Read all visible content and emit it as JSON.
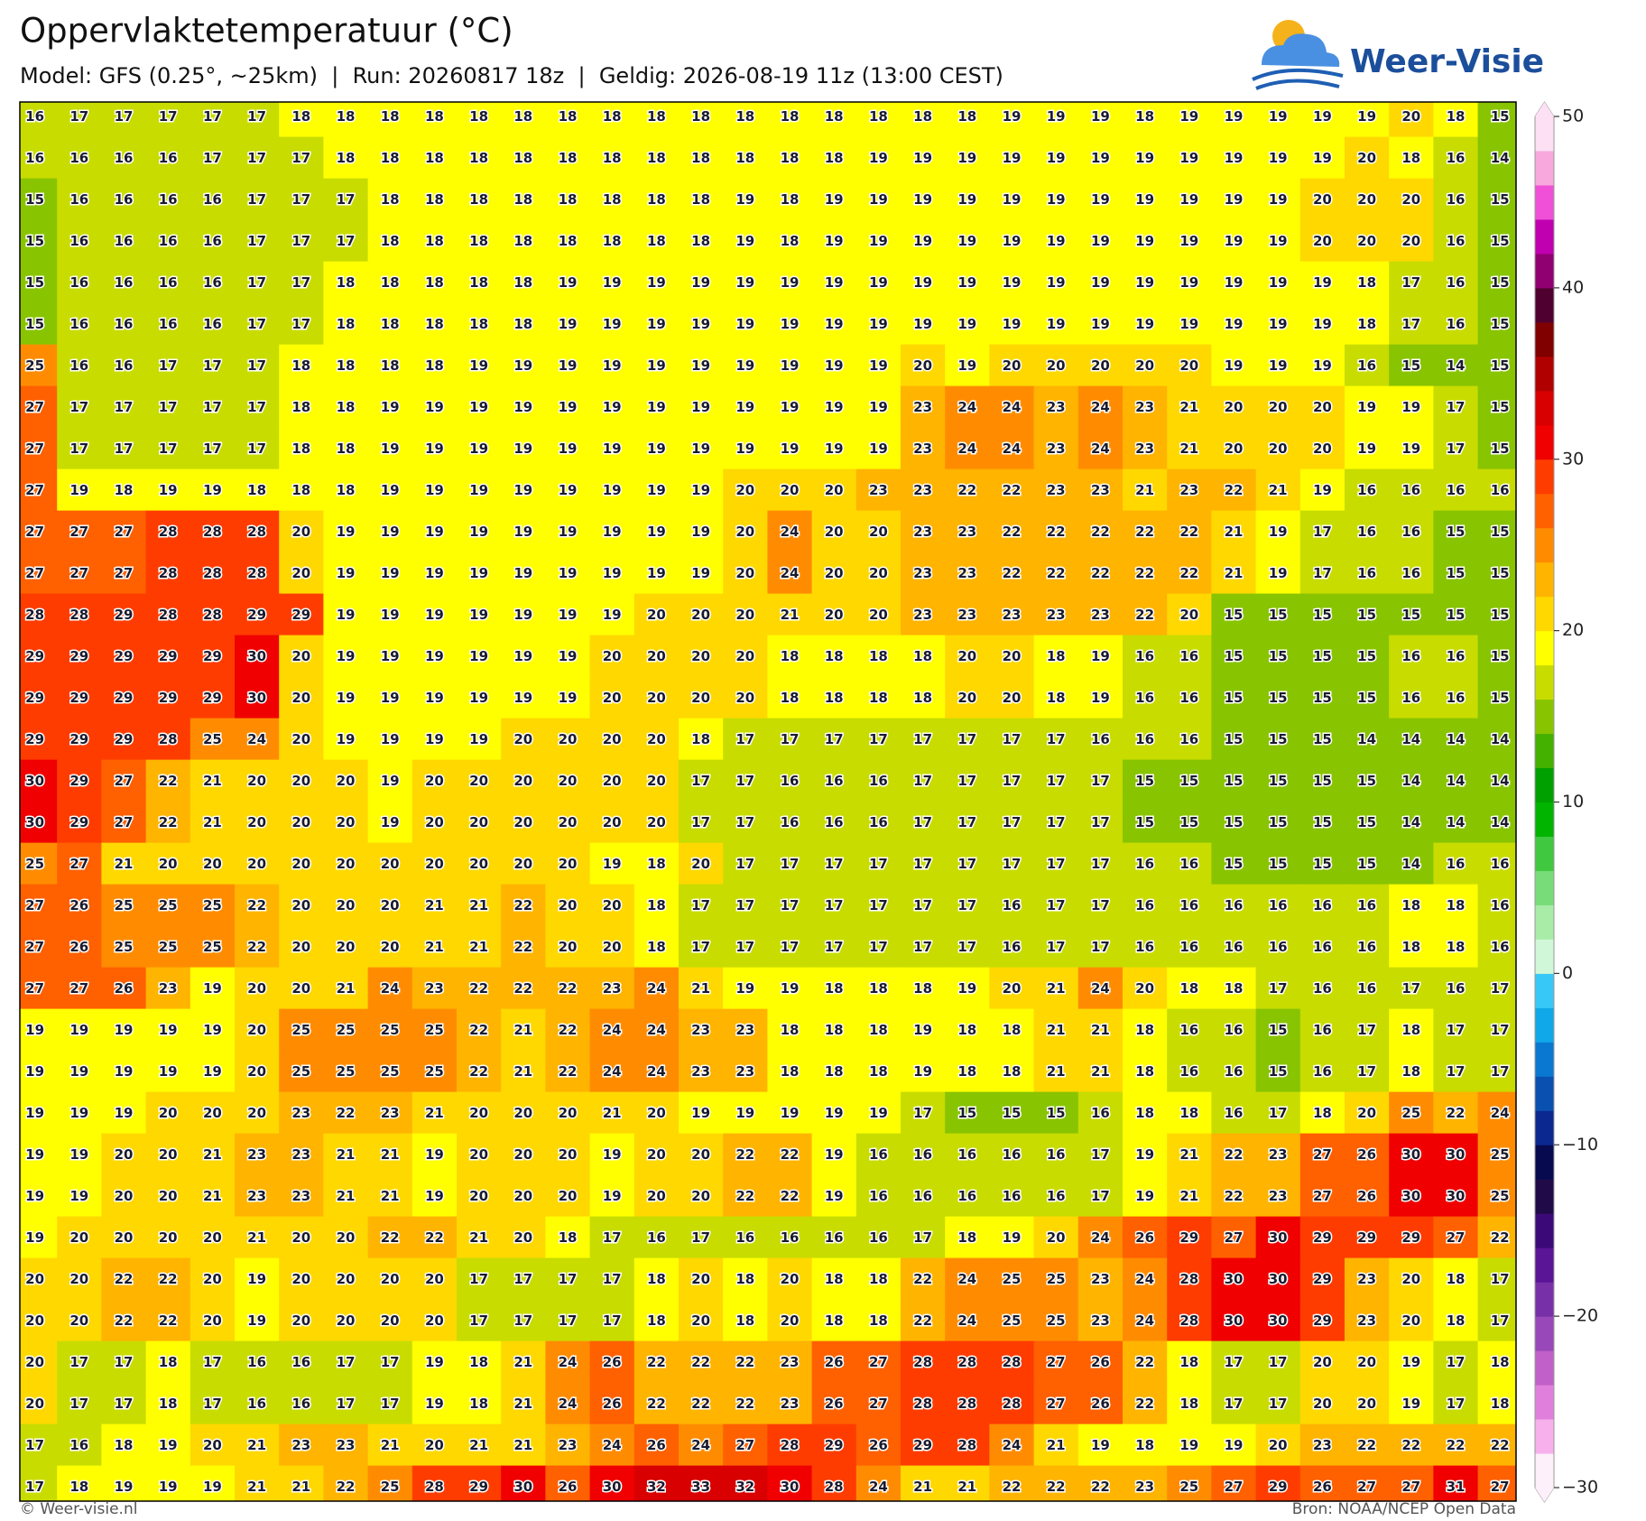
{
  "header": {
    "title": "Oppervlaktetemperatuur (°C)",
    "subtitle": "Model: GFS (0.25°, ~25km)  |  Run: 20260817 18z  |  Geldig: 2026-08-19 11z (13:00 CEST)",
    "logo": "Weer-Visie"
  },
  "map": {
    "unit": "°C",
    "values": [
      [
        16,
        17,
        17,
        17,
        17,
        17,
        18,
        18,
        18,
        18,
        18,
        18,
        18,
        18,
        18,
        18,
        18,
        18,
        18,
        18,
        18,
        18,
        19,
        19,
        19,
        18,
        19,
        19,
        19,
        19,
        19,
        20,
        18,
        15
      ],
      [
        16,
        16,
        16,
        16,
        17,
        17,
        17,
        18,
        18,
        18,
        18,
        18,
        18,
        18,
        18,
        18,
        18,
        18,
        18,
        19,
        19,
        19,
        19,
        19,
        19,
        19,
        19,
        19,
        19,
        19,
        20,
        18,
        16,
        14
      ],
      [
        15,
        16,
        16,
        16,
        16,
        17,
        17,
        17,
        18,
        18,
        18,
        18,
        18,
        18,
        18,
        18,
        19,
        18,
        19,
        19,
        19,
        19,
        19,
        19,
        19,
        19,
        19,
        19,
        19,
        20,
        20,
        20,
        16,
        15
      ],
      [
        15,
        16,
        16,
        16,
        16,
        17,
        17,
        17,
        18,
        18,
        18,
        18,
        18,
        18,
        18,
        18,
        19,
        18,
        19,
        19,
        19,
        19,
        19,
        19,
        19,
        19,
        19,
        19,
        19,
        20,
        20,
        20,
        16,
        15
      ],
      [
        15,
        16,
        16,
        16,
        16,
        17,
        17,
        18,
        18,
        18,
        18,
        18,
        19,
        19,
        19,
        19,
        19,
        19,
        19,
        19,
        19,
        19,
        19,
        19,
        19,
        19,
        19,
        19,
        19,
        19,
        18,
        17,
        16,
        15
      ],
      [
        15,
        16,
        16,
        16,
        16,
        17,
        17,
        18,
        18,
        18,
        18,
        18,
        19,
        19,
        19,
        19,
        19,
        19,
        19,
        19,
        19,
        19,
        19,
        19,
        19,
        19,
        19,
        19,
        19,
        19,
        18,
        17,
        16,
        15
      ],
      [
        25,
        16,
        16,
        17,
        17,
        17,
        18,
        18,
        18,
        18,
        19,
        19,
        19,
        19,
        19,
        19,
        19,
        19,
        19,
        19,
        20,
        19,
        20,
        20,
        20,
        20,
        20,
        19,
        19,
        19,
        16,
        15,
        14,
        15
      ],
      [
        27,
        17,
        17,
        17,
        17,
        17,
        18,
        18,
        19,
        19,
        19,
        19,
        19,
        19,
        19,
        19,
        19,
        19,
        19,
        19,
        23,
        24,
        24,
        23,
        24,
        23,
        21,
        20,
        20,
        20,
        19,
        19,
        17,
        15
      ],
      [
        27,
        17,
        17,
        17,
        17,
        17,
        18,
        18,
        19,
        19,
        19,
        19,
        19,
        19,
        19,
        19,
        19,
        19,
        19,
        19,
        23,
        24,
        24,
        23,
        24,
        23,
        21,
        20,
        20,
        20,
        19,
        19,
        17,
        15
      ],
      [
        27,
        19,
        18,
        19,
        19,
        18,
        18,
        18,
        19,
        19,
        19,
        19,
        19,
        19,
        19,
        19,
        20,
        20,
        20,
        23,
        23,
        22,
        22,
        23,
        23,
        21,
        23,
        22,
        21,
        19,
        16,
        16,
        16,
        16
      ],
      [
        27,
        27,
        27,
        28,
        28,
        28,
        20,
        19,
        19,
        19,
        19,
        19,
        19,
        19,
        19,
        19,
        20,
        24,
        20,
        20,
        23,
        23,
        22,
        22,
        22,
        22,
        22,
        21,
        19,
        17,
        16,
        16,
        15,
        15
      ],
      [
        27,
        27,
        27,
        28,
        28,
        28,
        20,
        19,
        19,
        19,
        19,
        19,
        19,
        19,
        19,
        19,
        20,
        24,
        20,
        20,
        23,
        23,
        22,
        22,
        22,
        22,
        22,
        21,
        19,
        17,
        16,
        16,
        15,
        15
      ],
      [
        28,
        28,
        29,
        28,
        28,
        29,
        29,
        19,
        19,
        19,
        19,
        19,
        19,
        19,
        20,
        20,
        20,
        21,
        20,
        20,
        23,
        23,
        23,
        23,
        23,
        22,
        20,
        15,
        15,
        15,
        15,
        15,
        15,
        15
      ],
      [
        29,
        29,
        29,
        29,
        29,
        30,
        20,
        19,
        19,
        19,
        19,
        19,
        19,
        20,
        20,
        20,
        20,
        18,
        18,
        18,
        18,
        20,
        20,
        18,
        19,
        16,
        16,
        15,
        15,
        15,
        15,
        16,
        16,
        15
      ],
      [
        29,
        29,
        29,
        29,
        29,
        30,
        20,
        19,
        19,
        19,
        19,
        19,
        19,
        20,
        20,
        20,
        20,
        18,
        18,
        18,
        18,
        20,
        20,
        18,
        19,
        16,
        16,
        15,
        15,
        15,
        15,
        16,
        16,
        15
      ],
      [
        29,
        29,
        29,
        28,
        25,
        24,
        20,
        19,
        19,
        19,
        19,
        20,
        20,
        20,
        20,
        18,
        17,
        17,
        17,
        17,
        17,
        17,
        17,
        17,
        16,
        16,
        16,
        15,
        15,
        15,
        14,
        14,
        14,
        14
      ],
      [
        30,
        29,
        27,
        22,
        21,
        20,
        20,
        20,
        19,
        20,
        20,
        20,
        20,
        20,
        20,
        17,
        17,
        16,
        16,
        16,
        17,
        17,
        17,
        17,
        17,
        15,
        15,
        15,
        15,
        15,
        15,
        14,
        14,
        14
      ],
      [
        30,
        29,
        27,
        22,
        21,
        20,
        20,
        20,
        19,
        20,
        20,
        20,
        20,
        20,
        20,
        17,
        17,
        16,
        16,
        16,
        17,
        17,
        17,
        17,
        17,
        15,
        15,
        15,
        15,
        15,
        15,
        14,
        14,
        14
      ],
      [
        25,
        27,
        21,
        20,
        20,
        20,
        20,
        20,
        20,
        20,
        20,
        20,
        20,
        19,
        18,
        20,
        17,
        17,
        17,
        17,
        17,
        17,
        17,
        17,
        17,
        16,
        16,
        15,
        15,
        15,
        15,
        14,
        16,
        16
      ],
      [
        27,
        26,
        25,
        25,
        25,
        22,
        20,
        20,
        20,
        21,
        21,
        22,
        20,
        20,
        18,
        17,
        17,
        17,
        17,
        17,
        17,
        17,
        16,
        17,
        17,
        16,
        16,
        16,
        16,
        16,
        16,
        18,
        18,
        16
      ],
      [
        27,
        26,
        25,
        25,
        25,
        22,
        20,
        20,
        20,
        21,
        21,
        22,
        20,
        20,
        18,
        17,
        17,
        17,
        17,
        17,
        17,
        17,
        16,
        17,
        17,
        16,
        16,
        16,
        16,
        16,
        16,
        18,
        18,
        16
      ],
      [
        27,
        27,
        26,
        23,
        19,
        20,
        20,
        21,
        24,
        23,
        22,
        22,
        22,
        23,
        24,
        21,
        19,
        19,
        18,
        18,
        18,
        19,
        20,
        21,
        24,
        20,
        18,
        18,
        17,
        16,
        16,
        17,
        16,
        17
      ],
      [
        19,
        19,
        19,
        19,
        19,
        20,
        25,
        25,
        25,
        25,
        22,
        21,
        22,
        24,
        24,
        23,
        23,
        18,
        18,
        18,
        19,
        18,
        18,
        21,
        21,
        18,
        16,
        16,
        15,
        16,
        17,
        18,
        17,
        17
      ],
      [
        19,
        19,
        19,
        19,
        19,
        20,
        25,
        25,
        25,
        25,
        22,
        21,
        22,
        24,
        24,
        23,
        23,
        18,
        18,
        18,
        19,
        18,
        18,
        21,
        21,
        18,
        16,
        16,
        15,
        16,
        17,
        18,
        17,
        17
      ],
      [
        19,
        19,
        19,
        20,
        20,
        20,
        23,
        22,
        23,
        21,
        20,
        20,
        20,
        21,
        20,
        19,
        19,
        19,
        19,
        19,
        17,
        15,
        15,
        15,
        16,
        18,
        18,
        16,
        17,
        18,
        20,
        25,
        22,
        24
      ],
      [
        19,
        19,
        20,
        20,
        21,
        23,
        23,
        21,
        21,
        19,
        20,
        20,
        20,
        19,
        20,
        20,
        22,
        22,
        19,
        16,
        16,
        16,
        16,
        16,
        17,
        19,
        21,
        22,
        23,
        27,
        26,
        30,
        30,
        25
      ],
      [
        19,
        19,
        20,
        20,
        21,
        23,
        23,
        21,
        21,
        19,
        20,
        20,
        20,
        19,
        20,
        20,
        22,
        22,
        19,
        16,
        16,
        16,
        16,
        16,
        17,
        19,
        21,
        22,
        23,
        27,
        26,
        30,
        30,
        25
      ],
      [
        19,
        20,
        20,
        20,
        20,
        21,
        20,
        20,
        22,
        22,
        21,
        20,
        18,
        17,
        16,
        17,
        16,
        16,
        16,
        16,
        17,
        18,
        19,
        20,
        24,
        26,
        29,
        27,
        30,
        29,
        29,
        29,
        27,
        22
      ],
      [
        20,
        20,
        22,
        22,
        20,
        19,
        20,
        20,
        20,
        20,
        17,
        17,
        17,
        17,
        18,
        20,
        18,
        20,
        18,
        18,
        22,
        24,
        25,
        25,
        23,
        24,
        28,
        30,
        30,
        29,
        23,
        20,
        18,
        17
      ],
      [
        20,
        20,
        22,
        22,
        20,
        19,
        20,
        20,
        20,
        20,
        17,
        17,
        17,
        17,
        18,
        20,
        18,
        20,
        18,
        18,
        22,
        24,
        25,
        25,
        23,
        24,
        28,
        30,
        30,
        29,
        23,
        20,
        18,
        17
      ],
      [
        20,
        17,
        17,
        18,
        17,
        16,
        16,
        17,
        17,
        19,
        18,
        21,
        24,
        26,
        22,
        22,
        22,
        23,
        26,
        27,
        28,
        28,
        28,
        27,
        26,
        22,
        18,
        17,
        17,
        20,
        20,
        19,
        17,
        18
      ],
      [
        20,
        17,
        17,
        18,
        17,
        16,
        16,
        17,
        17,
        19,
        18,
        21,
        24,
        26,
        22,
        22,
        22,
        23,
        26,
        27,
        28,
        28,
        28,
        27,
        26,
        22,
        18,
        17,
        17,
        20,
        20,
        19,
        17,
        18
      ],
      [
        17,
        16,
        18,
        19,
        20,
        21,
        23,
        23,
        21,
        20,
        21,
        21,
        23,
        24,
        26,
        24,
        27,
        28,
        29,
        26,
        29,
        28,
        24,
        21,
        19,
        18,
        19,
        19,
        20,
        23,
        22,
        22,
        22,
        22
      ],
      [
        17,
        18,
        19,
        19,
        19,
        21,
        21,
        22,
        25,
        28,
        29,
        30,
        26,
        30,
        32,
        33,
        32,
        30,
        28,
        24,
        21,
        21,
        22,
        22,
        22,
        23,
        25,
        27,
        29,
        26,
        27,
        27,
        31,
        27
      ]
    ]
  },
  "colorbar": {
    "lim": [
      -30,
      50
    ],
    "ticks": [
      {
        "value": -30,
        "label": "−30"
      },
      {
        "value": -20,
        "label": "−20"
      },
      {
        "value": -10,
        "label": "−10"
      },
      0,
      10,
      20,
      30,
      40,
      50
    ],
    "colors": [
      "#fdf0fb",
      "#f8b0ec",
      "#e080dc",
      "#c060c8",
      "#9848b8",
      "#7830a8",
      "#5a1496",
      "#3c0a78",
      "#200a48",
      "#080a50",
      "#0a2890",
      "#0a50b0",
      "#0a78d0",
      "#10a8e8",
      "#38c8f8",
      "#d0f8d8",
      "#a8eca8",
      "#78dc78",
      "#40c840",
      "#00b400",
      "#00a000",
      "#44b000",
      "#88c400",
      "#c8dc00",
      "#ffff00",
      "#ffd800",
      "#ffb400",
      "#ff8c00",
      "#ff6000",
      "#ff3c00",
      "#f00000",
      "#d80000",
      "#b00000",
      "#800000",
      "#500030",
      "#900070",
      "#c000b0",
      "#f050d8",
      "#f8a8dc",
      "#fde0f4"
    ]
  },
  "footer": {
    "left": "© Weer-visie.nl",
    "right": "Bron: NOAA/NCEP Open Data"
  }
}
